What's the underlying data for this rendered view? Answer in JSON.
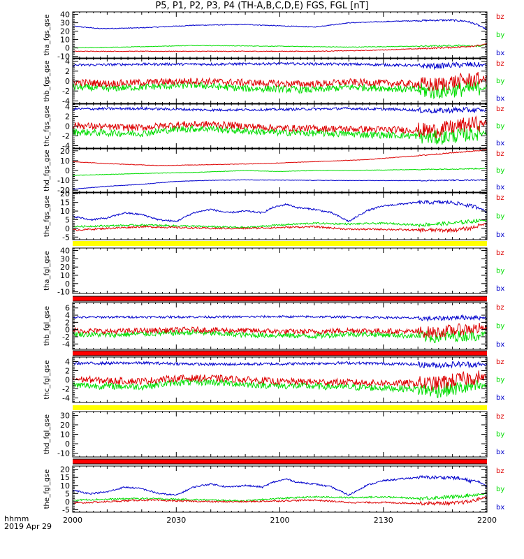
{
  "title": "P5, P1, P2, P3, P4 (TH-A,B,C,D,E) FGS, FGL [nT]",
  "x_axis": {
    "ticks": [
      "2000",
      "2030",
      "2100",
      "2130",
      "2200"
    ],
    "unit_label": "hhmm",
    "date_label": "2019 Apr 29"
  },
  "colors": {
    "bx": "#0000cc",
    "by": "#00dd00",
    "bz": "#dd0000",
    "flag_yellow": "#ffff00",
    "flag_red": "#ff0000"
  },
  "chart_data": {
    "type": "line",
    "x_range_minutes": [
      0,
      120
    ],
    "legend": [
      "bz",
      "by",
      "bx"
    ],
    "panels": [
      {
        "ylabel": "tha_fgs_gse",
        "ylim": [
          -12,
          43
        ],
        "yticks": [
          40,
          30,
          20,
          10,
          0,
          -10
        ],
        "flag": "none",
        "series": [
          {
            "name": "bx",
            "x": [
              0,
              8,
              20,
              35,
              50,
              62,
              70,
              80,
              95,
              105,
              110,
              114,
              117,
              120
            ],
            "y": [
              26,
              23,
              24,
              27,
              28,
              26,
              25,
              30,
              32,
              33,
              33,
              32,
              28,
              22
            ],
            "noise": 0.5
          },
          {
            "name": "by",
            "x": [
              0,
              15,
              35,
              60,
              80,
              100,
              112,
              118,
              120
            ],
            "y": [
              0,
              1,
              3,
              2,
              1,
              2,
              3,
              2,
              5
            ],
            "noise": 0.4
          },
          {
            "name": "bz",
            "x": [
              0,
              20,
              45,
              70,
              85,
              100,
              112,
              118,
              120
            ],
            "y": [
              -4,
              -4,
              -4,
              -4,
              -3,
              -1,
              1,
              3,
              5
            ],
            "noise": 0.4
          }
        ]
      },
      {
        "ylabel": "thb_fgs_gse",
        "ylim": [
          -4.5,
          4.5
        ],
        "yticks": [
          4,
          2,
          0,
          -2,
          -4
        ],
        "flag": "none",
        "series": [
          {
            "name": "bx",
            "x": [
              0,
              20,
              40,
              60,
              80,
              95,
              105,
              110,
              115,
              120
            ],
            "y": [
              3.2,
              3.4,
              3.4,
              3.5,
              3.4,
              3.2,
              3.0,
              3.2,
              3.3,
              3.2
            ],
            "noise": 0.25
          },
          {
            "name": "by",
            "x": [
              0,
              10,
              20,
              35,
              50,
              60,
              70,
              80,
              90,
              100,
              105,
              110,
              115,
              120
            ],
            "y": [
              -1.2,
              -1.5,
              -1.2,
              -0.8,
              -1.5,
              -1.6,
              -1.8,
              -1.2,
              -1.4,
              -1.8,
              -2.2,
              -1.8,
              -1.6,
              -1.2
            ],
            "noise": 0.7
          },
          {
            "name": "bz",
            "x": [
              0,
              10,
              20,
              35,
              50,
              60,
              70,
              80,
              90,
              100,
              105,
              110,
              115,
              120
            ],
            "y": [
              -0.2,
              -0.5,
              -0.3,
              0,
              -0.3,
              -0.5,
              -0.6,
              -0.2,
              -0.4,
              -0.6,
              -0.8,
              -0.2,
              0.2,
              0.4
            ],
            "noise": 0.7
          }
        ]
      },
      {
        "ylabel": "thc_fgs_gse",
        "ylim": [
          -4.5,
          4.5
        ],
        "yticks": [
          4,
          2,
          0,
          -2,
          -4
        ],
        "flag": "none",
        "series": [
          {
            "name": "bx",
            "x": [
              0,
              20,
              40,
              60,
              80,
              95,
              105,
              110,
              115,
              120
            ],
            "y": [
              3.5,
              3.6,
              3.3,
              3.4,
              3.6,
              3.4,
              3.1,
              3.3,
              3.3,
              3.2
            ],
            "noise": 0.25
          },
          {
            "name": "by",
            "x": [
              0,
              10,
              20,
              30,
              40,
              50,
              60,
              75,
              90,
              100,
              105,
              110,
              115,
              120
            ],
            "y": [
              -1.2,
              -1.4,
              -1.5,
              -0.6,
              -0.5,
              -1.0,
              -1.3,
              -1.5,
              -1.8,
              -2.0,
              -2.4,
              -2.0,
              -1.6,
              -1.3
            ],
            "noise": 0.7
          },
          {
            "name": "bz",
            "x": [
              0,
              10,
              20,
              30,
              40,
              50,
              60,
              75,
              90,
              100,
              105,
              110,
              115,
              120
            ],
            "y": [
              0.2,
              -0.2,
              -0.3,
              0.3,
              0.4,
              0,
              -0.4,
              -0.5,
              -0.7,
              -0.8,
              -0.9,
              -0.2,
              0.4,
              0.6
            ],
            "noise": 0.7
          }
        ]
      },
      {
        "ylabel": "thd_fgs_gse",
        "ylim": [
          -22,
          22
        ],
        "yticks": [
          20,
          10,
          0,
          -10,
          -20
        ],
        "flag": "none",
        "series": [
          {
            "name": "bx",
            "x": [
              0,
              10,
              20,
              30,
              40,
              50,
              60,
              80,
              100,
              120
            ],
            "y": [
              -19,
              -16,
              -14,
              -11,
              -10,
              -9.5,
              -9.8,
              -10.2,
              -10.3,
              -9.5
            ],
            "noise": 0.25
          },
          {
            "name": "by",
            "x": [
              0,
              10,
              20,
              35,
              50,
              60,
              70,
              80,
              100,
              120
            ],
            "y": [
              -5,
              -4,
              -3,
              -2,
              0,
              -1,
              0,
              0,
              1,
              2
            ],
            "noise": 0.25
          },
          {
            "name": "bz",
            "x": [
              0,
              10,
              25,
              40,
              55,
              70,
              85,
              100,
              120
            ],
            "y": [
              9,
              7,
              5,
              6,
              7,
              9,
              11,
              15,
              21
            ],
            "noise": 0.25
          }
        ]
      },
      {
        "ylabel": "the_fgs_gse",
        "ylim": [
          -6.5,
          20.5
        ],
        "yticks": [
          20,
          15,
          10,
          5,
          0,
          -5
        ],
        "flag": "yellow",
        "series": [
          {
            "name": "bx",
            "x": [
              0,
              5,
              10,
              15,
              20,
              25,
              30,
              35,
              40,
              45,
              50,
              55,
              58,
              62,
              65,
              70,
              75,
              78,
              80,
              85,
              90,
              95,
              100,
              105,
              110,
              115,
              118,
              120
            ],
            "y": [
              7,
              5,
              6,
              9,
              8,
              5,
              4,
              9,
              11,
              9,
              10,
              9,
              12,
              14,
              12,
              11,
              9,
              6,
              4,
              10,
              13,
              14,
              15,
              15,
              15,
              13,
              12,
              9
            ],
            "noise": 0.5
          },
          {
            "name": "by",
            "x": [
              0,
              10,
              20,
              30,
              40,
              50,
              60,
              70,
              80,
              90,
              100,
              110,
              115,
              120
            ],
            "y": [
              1,
              1.5,
              2,
              1.5,
              1,
              0.5,
              2,
              3,
              2.5,
              3,
              2,
              3,
              4,
              5
            ],
            "noise": 0.5
          },
          {
            "name": "bz",
            "x": [
              0,
              10,
              20,
              30,
              40,
              50,
              60,
              70,
              80,
              90,
              100,
              110,
              115,
              120
            ],
            "y": [
              -1,
              0,
              1,
              0.5,
              0,
              0,
              0.5,
              1,
              -0.5,
              -0.5,
              -1,
              -1,
              0,
              3
            ],
            "noise": 0.5
          }
        ]
      },
      {
        "ylabel": "tha_fgl_gse",
        "ylim": [
          -12,
          43
        ],
        "yticks": [
          40,
          30,
          20,
          10,
          0,
          -10
        ],
        "flag": "red",
        "series": []
      },
      {
        "ylabel": "thb_fgl_gse",
        "ylim": [
          -5.5,
          7.5
        ],
        "yticks": [
          6,
          4,
          2,
          0,
          -2,
          -4
        ],
        "flag": "red",
        "series": [
          {
            "name": "bx",
            "x": [
              0,
              20,
              40,
              60,
              80,
              95,
              105,
              110,
              115,
              120
            ],
            "y": [
              3.4,
              3.5,
              3.5,
              3.6,
              3.5,
              3.3,
              3.0,
              3.3,
              3.4,
              3.3
            ],
            "noise": 0.3
          },
          {
            "name": "by",
            "x": [
              0,
              10,
              20,
              35,
              50,
              60,
              70,
              80,
              90,
              100,
              105,
              110,
              115,
              120
            ],
            "y": [
              -1.2,
              -1.5,
              -1.2,
              -0.8,
              -1.5,
              -1.6,
              -1.8,
              -1.2,
              -1.4,
              -1.8,
              -2.2,
              -1.8,
              -1.6,
              -1.2
            ],
            "noise": 0.75
          },
          {
            "name": "bz",
            "x": [
              0,
              10,
              20,
              35,
              50,
              60,
              70,
              80,
              90,
              100,
              105,
              110,
              115,
              120
            ],
            "y": [
              -0.2,
              -0.5,
              -0.3,
              0,
              -0.3,
              -0.5,
              -0.6,
              -0.2,
              -0.4,
              -0.6,
              -0.8,
              -0.2,
              0.2,
              0.4
            ],
            "noise": 0.75
          }
        ]
      },
      {
        "ylabel": "thc_fgl_gse",
        "ylim": [
          -5,
          5
        ],
        "yticks": [
          4,
          2,
          0,
          -2,
          -4
        ],
        "flag": "yellow",
        "series": [
          {
            "name": "bx",
            "x": [
              0,
              20,
              40,
              60,
              80,
              95,
              105,
              110,
              115,
              120
            ],
            "y": [
              3.6,
              3.7,
              3.4,
              3.5,
              3.7,
              3.5,
              3.2,
              3.4,
              3.4,
              3.3
            ],
            "noise": 0.3
          },
          {
            "name": "by",
            "x": [
              0,
              10,
              20,
              30,
              40,
              50,
              60,
              75,
              90,
              100,
              105,
              110,
              115,
              120
            ],
            "y": [
              -1.2,
              -1.4,
              -1.5,
              -0.6,
              -0.5,
              -1.0,
              -1.3,
              -1.5,
              -1.8,
              -2.0,
              -2.4,
              -2.0,
              -1.6,
              -1.3
            ],
            "noise": 0.75
          },
          {
            "name": "bz",
            "x": [
              0,
              10,
              20,
              30,
              40,
              50,
              60,
              75,
              90,
              100,
              105,
              110,
              115,
              120
            ],
            "y": [
              0.2,
              -0.2,
              -0.3,
              0.3,
              0.4,
              0,
              -0.4,
              -0.5,
              -0.7,
              -0.8,
              -0.9,
              -0.2,
              0.4,
              0.6
            ],
            "noise": 0.75
          }
        ]
      },
      {
        "ylabel": "thd_fgl_gse",
        "ylim": [
          -14,
          34
        ],
        "yticks": [
          30,
          20,
          10,
          0,
          -10
        ],
        "flag": "red",
        "series": []
      },
      {
        "ylabel": "the_fgl_gse",
        "ylim": [
          -6.5,
          22
        ],
        "yticks": [
          20,
          15,
          10,
          5,
          0,
          -5
        ],
        "flag": "none",
        "series": [
          {
            "name": "bx",
            "x": [
              0,
              5,
              10,
              15,
              20,
              25,
              30,
              35,
              40,
              45,
              50,
              55,
              58,
              62,
              65,
              70,
              75,
              78,
              80,
              85,
              90,
              95,
              100,
              105,
              110,
              115,
              118,
              120
            ],
            "y": [
              7,
              5,
              6,
              9,
              8,
              5,
              4,
              9,
              11,
              9,
              10,
              9,
              12,
              14,
              12,
              11,
              9,
              6,
              4,
              10,
              13,
              14,
              15,
              15,
              15,
              13,
              12,
              9
            ],
            "noise": 0.5
          },
          {
            "name": "by",
            "x": [
              0,
              10,
              20,
              30,
              40,
              50,
              60,
              70,
              80,
              90,
              100,
              110,
              115,
              120
            ],
            "y": [
              1,
              1.5,
              2,
              1.5,
              1,
              0.5,
              2,
              3,
              2.5,
              3,
              2,
              3,
              4,
              5
            ],
            "noise": 0.5
          },
          {
            "name": "bz",
            "x": [
              0,
              10,
              20,
              30,
              40,
              50,
              60,
              70,
              80,
              90,
              100,
              110,
              115,
              120
            ],
            "y": [
              -1,
              0,
              1,
              0.5,
              0,
              0,
              0.5,
              1,
              -0.5,
              -0.5,
              -1,
              -1,
              0,
              3
            ],
            "noise": 0.5
          }
        ]
      }
    ]
  }
}
